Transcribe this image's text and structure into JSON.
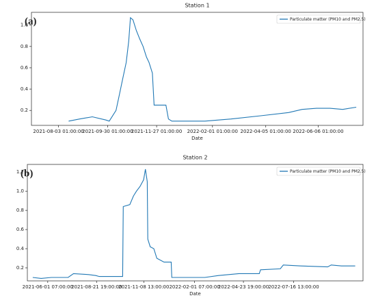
{
  "chart_data": [
    {
      "type": "line",
      "title": "Station 1",
      "panel_label": "(a)",
      "x_label": "Date",
      "legend": "upper right",
      "series": [
        {
          "name": "Particulate matter (PM10 and PM2.5)",
          "color": "#1f77b4",
          "x": [
            "2021-08-15 01:00:00",
            "2021-08-28 01:00:00",
            "2021-09-12 01:00:00",
            "2021-09-28 01:00:00",
            "2021-10-02 01:00:00",
            "2021-10-10 01:00:00",
            "2021-10-14 01:00:00",
            "2021-10-18 01:00:00",
            "2021-10-22 01:00:00",
            "2021-10-25 01:00:00",
            "2021-10-27 01:00:00",
            "2021-10-30 01:00:00",
            "2021-11-03 01:00:00",
            "2021-11-07 01:00:00",
            "2021-11-11 01:00:00",
            "2021-11-15 01:00:00",
            "2021-11-18 01:00:00",
            "2021-11-22 01:00:00",
            "2021-11-24 01:00:00",
            "2021-12-08 01:00:00",
            "2021-12-11 01:00:00",
            "2021-12-15 01:00:00",
            "2022-01-23 01:00:00",
            "2022-02-23 01:00:00",
            "2022-03-30 01:00:00",
            "2022-05-02 01:00:00",
            "2022-05-18 01:00:00",
            "2022-06-04 01:00:00",
            "2022-06-20 01:00:00",
            "2022-07-05 01:00:00",
            "2022-07-21 01:00:00"
          ],
          "values": [
            0.1,
            0.12,
            0.14,
            0.11,
            0.1,
            0.2,
            0.35,
            0.5,
            0.65,
            0.85,
            1.07,
            1.05,
            0.95,
            0.87,
            0.8,
            0.7,
            0.65,
            0.55,
            0.25,
            0.25,
            0.12,
            0.1,
            0.1,
            0.12,
            0.15,
            0.18,
            0.21,
            0.22,
            0.22,
            0.21,
            0.23
          ]
        }
      ],
      "xlim": [
        "2021-07-02 01:00:00",
        "2022-07-29 01:00:00"
      ],
      "xticks": [
        "2021-08-03 01:00:00",
        "2021-09-30 01:00:00",
        "2021-11-27 01:00:00",
        "2022-02-01 01:00:00",
        "2022-04-05 01:00:00",
        "2022-06-06 01:00:00"
      ],
      "ylim": [
        0.06,
        1.12
      ],
      "yticks": [
        0.2,
        0.4,
        0.6,
        0.8,
        {
          "value": 1,
          "label": "1.0"
        }
      ]
    },
    {
      "type": "line",
      "title": "Station 2",
      "panel_label": "(b)",
      "x_label": "Date",
      "legend": "upper right",
      "series": [
        {
          "name": "Particulate matter (PM10 and PM2.5)",
          "color": "#1f77b4",
          "x": [
            "2021-05-07 07:00:00",
            "2021-05-21 07:00:00",
            "2021-06-07 07:00:00",
            "2021-07-05 07:00:00",
            "2021-07-14 07:00:00",
            "2021-08-08 07:00:00",
            "2021-08-20 07:00:00",
            "2021-08-26 07:00:00",
            "2021-10-04 07:00:00",
            "2021-10-05 07:00:00",
            "2021-10-16 07:00:00",
            "2021-10-22 07:00:00",
            "2021-10-27 07:00:00",
            "2021-11-02 07:00:00",
            "2021-11-08 07:00:00",
            "2021-11-11 07:00:00",
            "2021-11-14 07:00:00",
            "2021-11-15 07:00:00",
            "2021-11-19 07:00:00",
            "2021-11-25 07:00:00",
            "2021-11-30 07:00:00",
            "2021-12-12 07:00:00",
            "2021-12-24 07:00:00",
            "2021-12-25 07:00:00",
            "2022-02-18 07:00:00",
            "2022-03-13 07:00:00",
            "2022-04-16 07:00:00",
            "2022-05-20 07:00:00",
            "2022-05-22 07:00:00",
            "2022-06-24 07:00:00",
            "2022-06-29 07:00:00",
            "2022-07-28 07:00:00",
            "2022-09-11 07:00:00",
            "2022-09-17 07:00:00",
            "2022-10-04 07:00:00",
            "2022-10-27 07:00:00"
          ],
          "values": [
            0.1,
            0.09,
            0.1,
            0.1,
            0.14,
            0.13,
            0.12,
            0.11,
            0.11,
            0.84,
            0.86,
            0.95,
            1.0,
            1.05,
            1.12,
            1.23,
            1.1,
            0.5,
            0.42,
            0.4,
            0.3,
            0.26,
            0.26,
            0.1,
            0.1,
            0.12,
            0.14,
            0.14,
            0.18,
            0.19,
            0.23,
            0.22,
            0.21,
            0.23,
            0.22,
            0.22
          ]
        }
      ],
      "xlim": [
        "2021-04-28 07:00:00",
        "2022-11-09 07:00:00"
      ],
      "xticks": [
        "2021-06-01 07:00:00",
        "2021-08-21 19:00:00",
        "2021-11-08 13:00:00",
        "2022-02-01 07:00:00",
        "2022-04-23 19:00:00",
        "2022-07-16 13:00:00"
      ],
      "ylim": [
        0.064,
        1.28
      ],
      "yticks": [
        0.2,
        0.4,
        0.6,
        0.8,
        {
          "value": 1,
          "label": "1.0"
        },
        1.2
      ]
    }
  ]
}
